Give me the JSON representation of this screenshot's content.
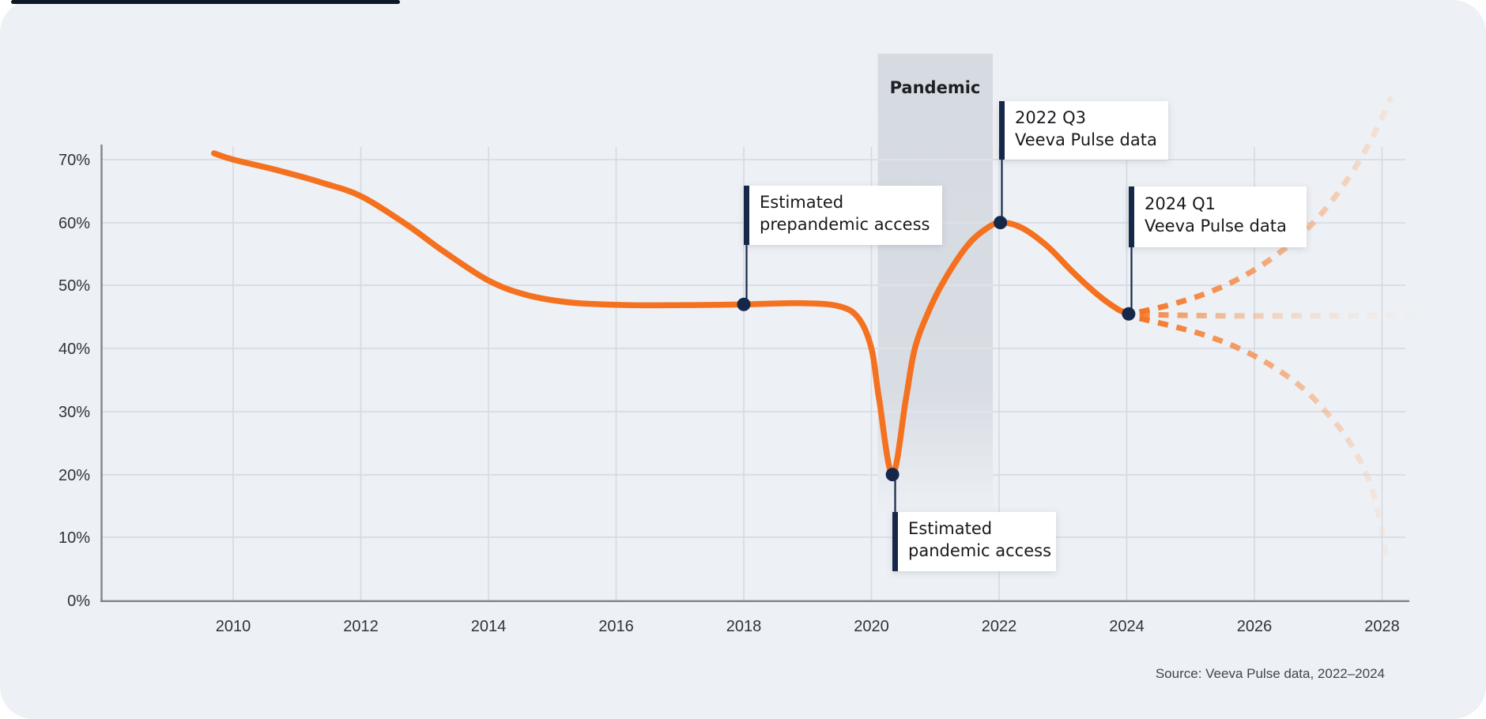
{
  "chart_data": {
    "type": "line",
    "title": "",
    "xlabel": "",
    "ylabel": "",
    "x_axis": {
      "ticks": [
        2010,
        2012,
        2014,
        2016,
        2018,
        2020,
        2022,
        2024,
        2026,
        2028
      ],
      "labels": [
        "2010",
        "2012",
        "2014",
        "2016",
        "2018",
        "2020",
        "2022",
        "2024",
        "2026",
        "2028"
      ]
    },
    "y_axis": {
      "ticks": [
        0,
        10,
        20,
        30,
        40,
        50,
        60,
        70
      ],
      "labels": [
        "0%",
        "10%",
        "20%",
        "30%",
        "40%",
        "50%",
        "60%",
        "70%"
      ],
      "range": [
        0,
        75
      ]
    },
    "grid": true,
    "colors": {
      "line": "#f4711f",
      "marker": "#16284a",
      "band": "#b6bbc7",
      "gridline": "#d4d8e1",
      "axis": "#80858c"
    },
    "series": [
      {
        "name": "hcp-access-historical",
        "style": "solid",
        "color": "#f4711f",
        "points": [
          [
            2009.7,
            71
          ],
          [
            2010,
            70
          ],
          [
            2010.7,
            68.3
          ],
          [
            2011.4,
            66.3
          ],
          [
            2012,
            64.2
          ],
          [
            2012.7,
            59.8
          ],
          [
            2013.3,
            55.4
          ],
          [
            2014,
            50.8
          ],
          [
            2014.6,
            48.5
          ],
          [
            2015.3,
            47.3
          ],
          [
            2016.2,
            46.9
          ],
          [
            2017.2,
            46.9
          ],
          [
            2018,
            47
          ],
          [
            2018.9,
            47.2
          ],
          [
            2019.5,
            46.7
          ],
          [
            2019.8,
            44.8
          ],
          [
            2020.0,
            40
          ],
          [
            2020.12,
            32
          ],
          [
            2020.33,
            20
          ],
          [
            2020.54,
            32
          ],
          [
            2020.68,
            40
          ],
          [
            2020.9,
            46
          ],
          [
            2021.15,
            51
          ],
          [
            2021.5,
            56.3
          ],
          [
            2021.78,
            58.9
          ],
          [
            2022.02,
            60
          ],
          [
            2022.35,
            59.2
          ],
          [
            2022.75,
            56.3
          ],
          [
            2023.15,
            52.2
          ],
          [
            2023.55,
            48.5
          ],
          [
            2023.85,
            46.3
          ],
          [
            2024.03,
            45.5
          ]
        ]
      },
      {
        "name": "projection-upper",
        "style": "dashed-fading",
        "color": "#f4711f",
        "points": [
          [
            2024.2,
            45.8
          ],
          [
            2024.7,
            47
          ],
          [
            2025.2,
            48.6
          ],
          [
            2025.7,
            50.8
          ],
          [
            2026.2,
            53.8
          ],
          [
            2026.7,
            57.8
          ],
          [
            2027.1,
            62
          ],
          [
            2027.5,
            67.5
          ],
          [
            2027.85,
            73.5
          ],
          [
            2028.15,
            80
          ]
        ]
      },
      {
        "name": "projection-flat",
        "style": "dashed-fading",
        "color": "#f4711f",
        "points": [
          [
            2024.2,
            45.4
          ],
          [
            2025.5,
            45.2
          ],
          [
            2027,
            45.2
          ],
          [
            2028.5,
            45.3
          ]
        ]
      },
      {
        "name": "projection-lower",
        "style": "dashed-fading",
        "color": "#f4711f",
        "points": [
          [
            2024.2,
            44.8
          ],
          [
            2024.7,
            43.6
          ],
          [
            2025.2,
            42.2
          ],
          [
            2025.7,
            40.3
          ],
          [
            2026.2,
            37.7
          ],
          [
            2026.7,
            34.2
          ],
          [
            2027.1,
            30.2
          ],
          [
            2027.5,
            25
          ],
          [
            2027.85,
            17.5
          ],
          [
            2028.07,
            7
          ]
        ]
      }
    ],
    "markers": [
      {
        "x": 2018,
        "y": 47,
        "label_lines": [
          "Estimated",
          "prepandemic access"
        ]
      },
      {
        "x": 2020.33,
        "y": 20,
        "label_lines": [
          "Estimated",
          "pandemic access"
        ]
      },
      {
        "x": 2022.02,
        "y": 60,
        "label_lines": [
          "2022 Q3",
          "Veeva Pulse data"
        ]
      },
      {
        "x": 2024.03,
        "y": 45.5,
        "label_lines": [
          "2024 Q1",
          "Veeva Pulse data"
        ]
      }
    ],
    "band": {
      "label": "Pandemic",
      "x_from": 2020.1,
      "x_to": 2021.9
    },
    "legend": null,
    "source": "Source: Veeva Pulse data, 2022–2024"
  }
}
